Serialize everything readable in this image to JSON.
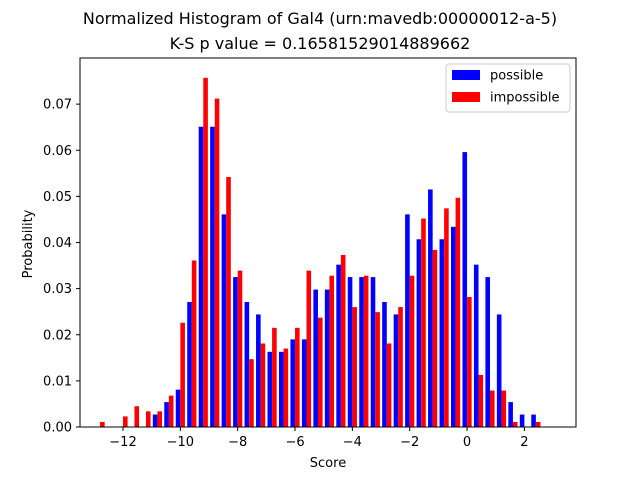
{
  "chart_data": {
    "type": "bar",
    "title": "Normalized Histogram of Gal4 (urn:mavedb:00000012-a-5)",
    "subtitle": "K-S p value = 0.16581529014889662",
    "xlabel": "Score",
    "ylabel": "Probability",
    "xlim": [
      -13.5,
      3.8
    ],
    "ylim": [
      0,
      0.08
    ],
    "xticks": [
      -12,
      -10,
      -8,
      -6,
      -4,
      -2,
      0,
      2
    ],
    "xtick_labels": [
      "−12",
      "−10",
      "−8",
      "−6",
      "−4",
      "−2",
      "0",
      "2"
    ],
    "yticks": [
      0.0,
      0.01,
      0.02,
      0.03,
      0.04,
      0.05,
      0.06,
      0.07
    ],
    "ytick_labels": [
      "0.00",
      "0.01",
      "0.02",
      "0.03",
      "0.04",
      "0.05",
      "0.06",
      "0.07"
    ],
    "grid": false,
    "legend_position": "top-right",
    "bin_width": 0.4,
    "bin_centers": [
      -12.8,
      -12.4,
      -12.0,
      -11.6,
      -11.2,
      -10.8,
      -10.4,
      -10.0,
      -9.6,
      -9.2,
      -8.8,
      -8.4,
      -8.0,
      -7.6,
      -7.2,
      -6.8,
      -6.4,
      -6.0,
      -5.6,
      -5.2,
      -4.8,
      -4.4,
      -4.0,
      -3.6,
      -3.2,
      -2.8,
      -2.4,
      -2.0,
      -1.6,
      -1.2,
      -0.8,
      -0.4,
      0.0,
      0.4,
      0.8,
      1.2,
      1.6,
      2.0,
      2.4,
      2.8
    ],
    "series": [
      {
        "name": "possible",
        "color": "#0000ff",
        "values": [
          0,
          0,
          0,
          0,
          0,
          0.0027,
          0.0054,
          0.0081,
          0.0271,
          0.0651,
          0.0651,
          0.0461,
          0.0325,
          0.0271,
          0.0244,
          0.0163,
          0.0163,
          0.019,
          0.019,
          0.0298,
          0.0298,
          0.0352,
          0.0325,
          0.0325,
          0.0325,
          0.0271,
          0.0244,
          0.0461,
          0.0407,
          0.0515,
          0.0407,
          0.0434,
          0.0596,
          0.0352,
          0.0325,
          0.0244,
          0.0054,
          0.0027,
          0.0027,
          0
        ]
      },
      {
        "name": "impossible",
        "color": "#ff0000",
        "values": [
          0.0011,
          0,
          0.0023,
          0.0045,
          0.0034,
          0.0034,
          0.0068,
          0.0226,
          0.0361,
          0.0757,
          0.0712,
          0.0542,
          0.0339,
          0.0147,
          0.0181,
          0.0215,
          0.017,
          0.0215,
          0.0339,
          0.0237,
          0.0328,
          0.0373,
          0.026,
          0.0328,
          0.0249,
          0.0181,
          0.026,
          0.0328,
          0.0452,
          0.0384,
          0.0474,
          0.0497,
          0.0282,
          0.0113,
          0.0079,
          0.0079,
          0.0011,
          0,
          0.0011,
          0
        ]
      }
    ]
  }
}
